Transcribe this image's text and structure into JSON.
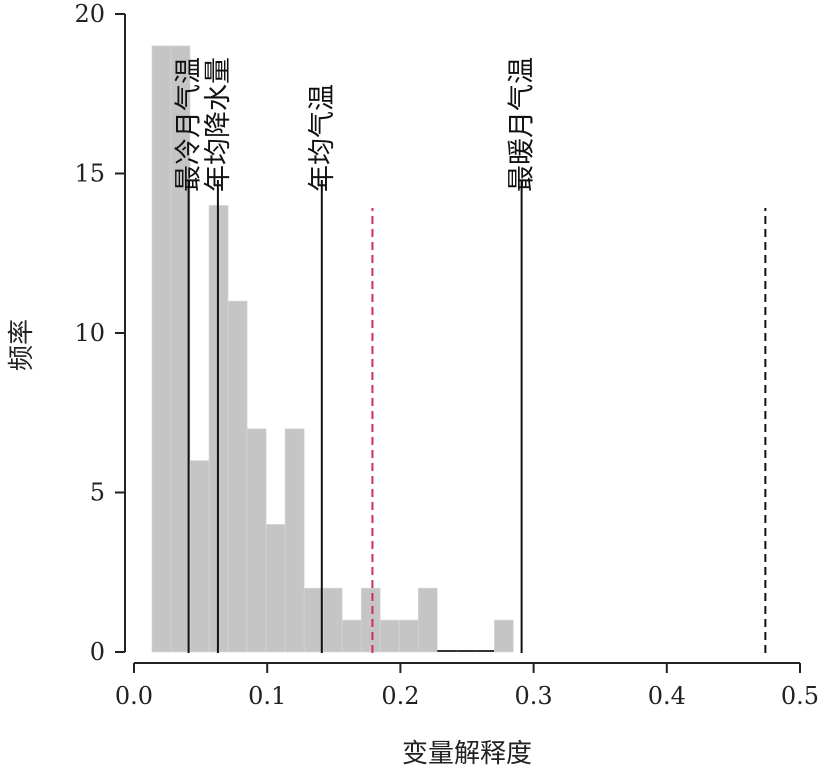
{
  "chart_data": {
    "type": "bar",
    "title": "",
    "xlabel": "变量解释度",
    "ylabel": "频率",
    "xlim": [
      0,
      0.5
    ],
    "ylim": [
      0,
      20
    ],
    "xticks": [
      "0.0",
      "0.1",
      "0.2",
      "0.3",
      "0.4",
      "0.5"
    ],
    "yticks": [
      "0",
      "5",
      "10",
      "15",
      "20"
    ],
    "grid": false,
    "histogram": {
      "bin_start": 0.0135,
      "bin_width": 0.01428,
      "counts": [
        19,
        19,
        6,
        14,
        11,
        7,
        4,
        7,
        2,
        2,
        1,
        2,
        1,
        1,
        2,
        0,
        0,
        0,
        1
      ],
      "color": "#c4c5c4"
    },
    "reference_lines": [
      {
        "label": "最冷月气温",
        "x": 0.041,
        "style": "solid",
        "color": "#111111"
      },
      {
        "label": "年均降水量",
        "x": 0.063,
        "style": "solid",
        "color": "#111111"
      },
      {
        "label": "年均气温",
        "x": 0.141,
        "style": "solid",
        "color": "#111111"
      },
      {
        "label": "",
        "x": 0.179,
        "style": "dashed",
        "color": "#c8315e"
      },
      {
        "label": "最暖月气温",
        "x": 0.291,
        "style": "solid",
        "color": "#111111"
      },
      {
        "label": "",
        "x": 0.474,
        "style": "dashed",
        "color": "#111111"
      }
    ]
  }
}
